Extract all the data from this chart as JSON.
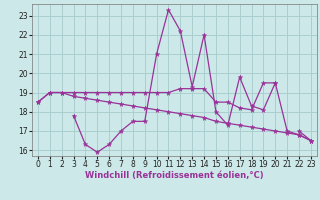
{
  "x": [
    0,
    1,
    2,
    3,
    4,
    5,
    6,
    7,
    8,
    9,
    10,
    11,
    12,
    13,
    14,
    15,
    16,
    17,
    18,
    19,
    20,
    21,
    22,
    23
  ],
  "line1": [
    18.5,
    19.0,
    19.0,
    19.0,
    19.0,
    19.0,
    19.0,
    19.0,
    19.0,
    19.0,
    19.0,
    19.0,
    19.2,
    19.2,
    19.2,
    18.5,
    18.5,
    18.2,
    18.1,
    19.5,
    19.5,
    17.0,
    16.8,
    16.5
  ],
  "line2": [
    18.5,
    19.0,
    19.0,
    18.8,
    18.7,
    18.6,
    18.5,
    18.4,
    18.3,
    18.2,
    18.1,
    18.0,
    17.9,
    17.8,
    17.7,
    17.5,
    17.4,
    17.3,
    17.2,
    17.1,
    17.0,
    16.9,
    16.8,
    16.5
  ],
  "line3": [
    null,
    null,
    null,
    17.8,
    16.3,
    15.9,
    16.3,
    17.0,
    17.5,
    17.5,
    21.0,
    23.3,
    22.2,
    19.3,
    22.0,
    18.0,
    17.3,
    19.8,
    18.3,
    18.1,
    19.5,
    null,
    17.0,
    16.5
  ],
  "line_color": "#993399",
  "bg_color": "#cce8e8",
  "grid_color": "#aacece",
  "xlabel": "Windchill (Refroidissement éolien,°C)",
  "ylim": [
    15.7,
    23.6
  ],
  "xlim": [
    -0.5,
    23.5
  ],
  "yticks": [
    16,
    17,
    18,
    19,
    20,
    21,
    22,
    23
  ],
  "xticks": [
    0,
    1,
    2,
    3,
    4,
    5,
    6,
    7,
    8,
    9,
    10,
    11,
    12,
    13,
    14,
    15,
    16,
    17,
    18,
    19,
    20,
    21,
    22,
    23
  ],
  "tick_fontsize": 5.5,
  "xlabel_fontsize": 6.0,
  "marker_size": 3.5,
  "linewidth": 0.9
}
